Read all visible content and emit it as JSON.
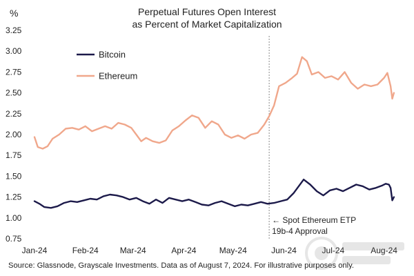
{
  "chart_data": {
    "type": "line",
    "title": "Perpetual Futures Open Interest",
    "subtitle": "as Percent of Market Capitalization",
    "ylabel": "%",
    "xlabel": "",
    "ylim": [
      0.75,
      3.25
    ],
    "yticks": [
      "0.75",
      "1.00",
      "1.25",
      "1.50",
      "1.75",
      "2.00",
      "2.25",
      "2.50",
      "2.75",
      "3.00",
      "3.25"
    ],
    "xticks": [
      {
        "label": "Jan-24",
        "date": "2024-01-01"
      },
      {
        "label": "Feb-24",
        "date": "2024-02-01"
      },
      {
        "label": "Mar-24",
        "date": "2024-03-01"
      },
      {
        "label": "Apr-24",
        "date": "2024-04-01"
      },
      {
        "label": "May-24",
        "date": "2024-05-01"
      },
      {
        "label": "Jun-24",
        "date": "2024-06-01"
      },
      {
        "label": "Jul-24",
        "date": "2024-07-01"
      },
      {
        "label": "Aug-24",
        "date": "2024-08-01"
      }
    ],
    "xrange": [
      "2024-01-01",
      "2024-08-10"
    ],
    "grid": false,
    "legend_position": "top-left",
    "series": [
      {
        "name": "Bitcoin",
        "color": "#1c1a4a",
        "points": [
          [
            "2024-01-01",
            1.2
          ],
          [
            "2024-01-04",
            1.17
          ],
          [
            "2024-01-07",
            1.13
          ],
          [
            "2024-01-11",
            1.12
          ],
          [
            "2024-01-15",
            1.14
          ],
          [
            "2024-01-19",
            1.18
          ],
          [
            "2024-01-23",
            1.2
          ],
          [
            "2024-01-27",
            1.19
          ],
          [
            "2024-01-31",
            1.21
          ],
          [
            "2024-02-04",
            1.23
          ],
          [
            "2024-02-08",
            1.22
          ],
          [
            "2024-02-12",
            1.26
          ],
          [
            "2024-02-16",
            1.28
          ],
          [
            "2024-02-20",
            1.27
          ],
          [
            "2024-02-24",
            1.25
          ],
          [
            "2024-02-28",
            1.22
          ],
          [
            "2024-03-03",
            1.24
          ],
          [
            "2024-03-07",
            1.2
          ],
          [
            "2024-03-11",
            1.17
          ],
          [
            "2024-03-15",
            1.22
          ],
          [
            "2024-03-19",
            1.18
          ],
          [
            "2024-03-23",
            1.24
          ],
          [
            "2024-03-27",
            1.22
          ],
          [
            "2024-03-31",
            1.2
          ],
          [
            "2024-04-04",
            1.22
          ],
          [
            "2024-04-08",
            1.19
          ],
          [
            "2024-04-12",
            1.16
          ],
          [
            "2024-04-16",
            1.15
          ],
          [
            "2024-04-20",
            1.18
          ],
          [
            "2024-04-24",
            1.2
          ],
          [
            "2024-04-28",
            1.17
          ],
          [
            "2024-05-02",
            1.14
          ],
          [
            "2024-05-06",
            1.16
          ],
          [
            "2024-05-10",
            1.15
          ],
          [
            "2024-05-14",
            1.17
          ],
          [
            "2024-05-18",
            1.19
          ],
          [
            "2024-05-22",
            1.17
          ],
          [
            "2024-05-26",
            1.18
          ],
          [
            "2024-05-30",
            1.2
          ],
          [
            "2024-06-03",
            1.22
          ],
          [
            "2024-06-07",
            1.3
          ],
          [
            "2024-06-10",
            1.38
          ],
          [
            "2024-06-13",
            1.46
          ],
          [
            "2024-06-17",
            1.4
          ],
          [
            "2024-06-21",
            1.32
          ],
          [
            "2024-06-25",
            1.27
          ],
          [
            "2024-06-29",
            1.33
          ],
          [
            "2024-07-03",
            1.35
          ],
          [
            "2024-07-07",
            1.32
          ],
          [
            "2024-07-11",
            1.36
          ],
          [
            "2024-07-15",
            1.4
          ],
          [
            "2024-07-19",
            1.38
          ],
          [
            "2024-07-23",
            1.34
          ],
          [
            "2024-07-27",
            1.36
          ],
          [
            "2024-07-31",
            1.39
          ],
          [
            "2024-08-02",
            1.41
          ],
          [
            "2024-08-04",
            1.4
          ],
          [
            "2024-08-05",
            1.36
          ],
          [
            "2024-08-06",
            1.21
          ],
          [
            "2024-08-07",
            1.25
          ]
        ]
      },
      {
        "name": "Ethereum",
        "color": "#f0a78b",
        "points": [
          [
            "2024-01-01",
            1.97
          ],
          [
            "2024-01-03",
            1.85
          ],
          [
            "2024-01-06",
            1.83
          ],
          [
            "2024-01-09",
            1.86
          ],
          [
            "2024-01-12",
            1.95
          ],
          [
            "2024-01-16",
            2.0
          ],
          [
            "2024-01-20",
            2.07
          ],
          [
            "2024-01-24",
            2.08
          ],
          [
            "2024-01-28",
            2.06
          ],
          [
            "2024-02-01",
            2.1
          ],
          [
            "2024-02-05",
            2.04
          ],
          [
            "2024-02-09",
            2.07
          ],
          [
            "2024-02-13",
            2.1
          ],
          [
            "2024-02-17",
            2.07
          ],
          [
            "2024-02-21",
            2.14
          ],
          [
            "2024-02-25",
            2.12
          ],
          [
            "2024-02-29",
            2.08
          ],
          [
            "2024-03-03",
            2.0
          ],
          [
            "2024-03-06",
            1.92
          ],
          [
            "2024-03-09",
            1.96
          ],
          [
            "2024-03-13",
            1.92
          ],
          [
            "2024-03-17",
            1.9
          ],
          [
            "2024-03-21",
            1.93
          ],
          [
            "2024-03-25",
            2.05
          ],
          [
            "2024-03-29",
            2.1
          ],
          [
            "2024-04-02",
            2.17
          ],
          [
            "2024-04-06",
            2.23
          ],
          [
            "2024-04-10",
            2.2
          ],
          [
            "2024-04-14",
            2.08
          ],
          [
            "2024-04-18",
            2.16
          ],
          [
            "2024-04-22",
            2.12
          ],
          [
            "2024-04-26",
            2.0
          ],
          [
            "2024-04-30",
            1.96
          ],
          [
            "2024-05-04",
            1.99
          ],
          [
            "2024-05-08",
            1.95
          ],
          [
            "2024-05-12",
            2.0
          ],
          [
            "2024-05-16",
            2.02
          ],
          [
            "2024-05-20",
            2.12
          ],
          [
            "2024-05-23",
            2.22
          ],
          [
            "2024-05-26",
            2.35
          ],
          [
            "2024-05-29",
            2.58
          ],
          [
            "2024-06-02",
            2.62
          ],
          [
            "2024-06-06",
            2.68
          ],
          [
            "2024-06-09",
            2.73
          ],
          [
            "2024-06-12",
            2.93
          ],
          [
            "2024-06-15",
            2.88
          ],
          [
            "2024-06-18",
            2.72
          ],
          [
            "2024-06-22",
            2.75
          ],
          [
            "2024-06-26",
            2.68
          ],
          [
            "2024-06-30",
            2.7
          ],
          [
            "2024-07-04",
            2.66
          ],
          [
            "2024-07-08",
            2.75
          ],
          [
            "2024-07-12",
            2.62
          ],
          [
            "2024-07-16",
            2.55
          ],
          [
            "2024-07-20",
            2.6
          ],
          [
            "2024-07-24",
            2.58
          ],
          [
            "2024-07-28",
            2.6
          ],
          [
            "2024-08-01",
            2.68
          ],
          [
            "2024-08-03",
            2.74
          ],
          [
            "2024-08-05",
            2.58
          ],
          [
            "2024-08-06",
            2.43
          ],
          [
            "2024-08-07",
            2.5
          ]
        ]
      }
    ],
    "annotations": [
      {
        "date": "2024-05-23",
        "text_line1": "← Spot Ethereum ETP",
        "text_line2": "19b-4 Approval",
        "style": "dashed-vertical-line"
      }
    ]
  },
  "footer": {
    "source": "Source: Glassnode, Grayscale Investments. Data as of August 7, 2024. For illustrative purposes only."
  }
}
